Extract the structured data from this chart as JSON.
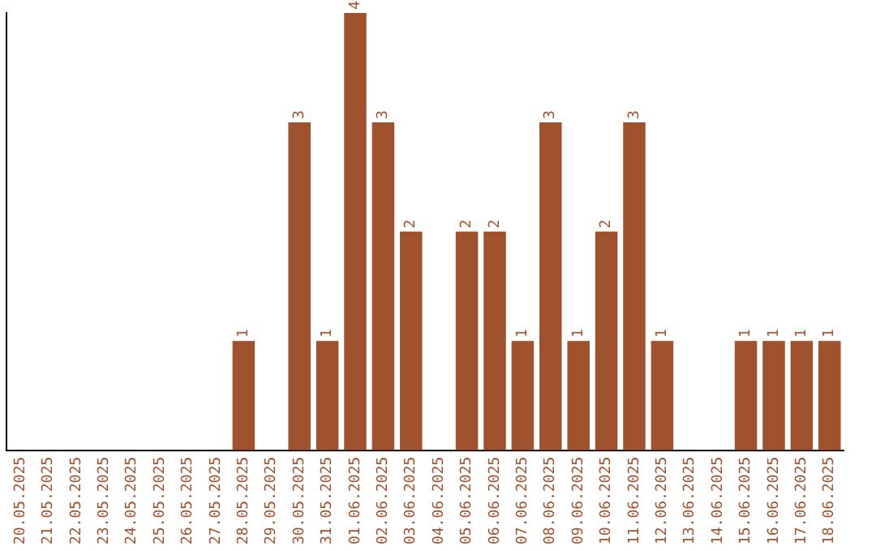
{
  "chart_data": {
    "type": "bar",
    "categories": [
      "20.05.2025",
      "21.05.2025",
      "22.05.2025",
      "23.05.2025",
      "24.05.2025",
      "25.05.2025",
      "26.05.2025",
      "27.05.2025",
      "28.05.2025",
      "29.05.2025",
      "30.05.2025",
      "31.05.2025",
      "01.06.2025",
      "02.06.2025",
      "03.06.2025",
      "04.06.2025",
      "05.06.2025",
      "06.06.2025",
      "07.06.2025",
      "08.06.2025",
      "09.06.2025",
      "10.06.2025",
      "11.06.2025",
      "12.06.2025",
      "13.06.2025",
      "14.06.2025",
      "15.06.2025",
      "16.06.2025",
      "17.06.2025",
      "18.06.2025"
    ],
    "values": [
      0,
      0,
      0,
      0,
      0,
      0,
      0,
      0,
      1,
      0,
      3,
      1,
      4,
      3,
      2,
      0,
      2,
      2,
      1,
      3,
      1,
      2,
      3,
      1,
      0,
      0,
      1,
      1,
      1,
      1
    ],
    "value_labels": [
      null,
      null,
      null,
      null,
      null,
      null,
      null,
      null,
      "1",
      null,
      "3",
      "1",
      "4",
      "3",
      "2",
      null,
      "2",
      "2",
      "1",
      "3",
      "1",
      "2",
      "3",
      "1",
      null,
      null,
      "1",
      "1",
      "1",
      "1"
    ],
    "color": "#a0522d"
  }
}
